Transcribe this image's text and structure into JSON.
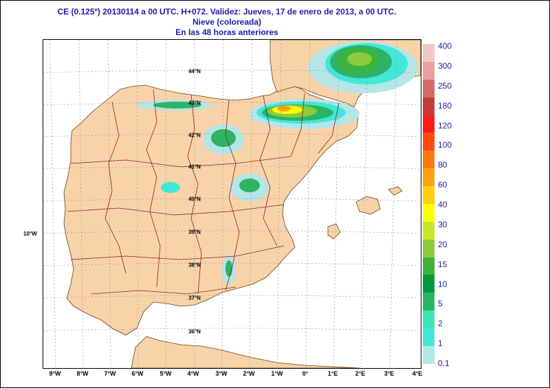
{
  "header": {
    "line1": "CE (0.125º) 20130114 a 00 UTC.  H+072. Validez: Jueves, 17 de enero de 2013,  a  00 UTC.",
    "line2": "Nieve (coloreada)",
    "line3": "En las 48 horas anteriores"
  },
  "map": {
    "lon_labels": [
      "9°W",
      "8°W",
      "7°W",
      "6°W",
      "5°W",
      "4°W",
      "3°W",
      "2°W",
      "1°W",
      "0°",
      "1°E",
      "2°E",
      "3°E",
      "4°E"
    ],
    "lat_labels": [
      "44°N",
      "43°N",
      "42°N",
      "41°N",
      "40°N",
      "39°N",
      "38°N",
      "37°N",
      "36°N"
    ],
    "side_label": "10°W",
    "land_color": "#f9d3a8",
    "sea_color": "#ffffff",
    "border_color": "#8b1a1a"
  },
  "legend": {
    "labels": [
      "400",
      "300",
      "250",
      "180",
      "120",
      "100",
      "80",
      "60",
      "40",
      "30",
      "20",
      "15",
      "10",
      "5",
      "2",
      "1",
      "0.1"
    ],
    "colors": [
      "#f2c6c6",
      "#e8a0a0",
      "#d46a6a",
      "#c83a3a",
      "#ff1a1a",
      "#ff4a10",
      "#ff7a10",
      "#ffa010",
      "#ffd010",
      "#ffff00",
      "#c8e628",
      "#8ccc3c",
      "#3cb43c",
      "#009a3a",
      "#2cb464",
      "#3ce6b4",
      "#40e8d8",
      "#b4e6e6"
    ]
  }
}
